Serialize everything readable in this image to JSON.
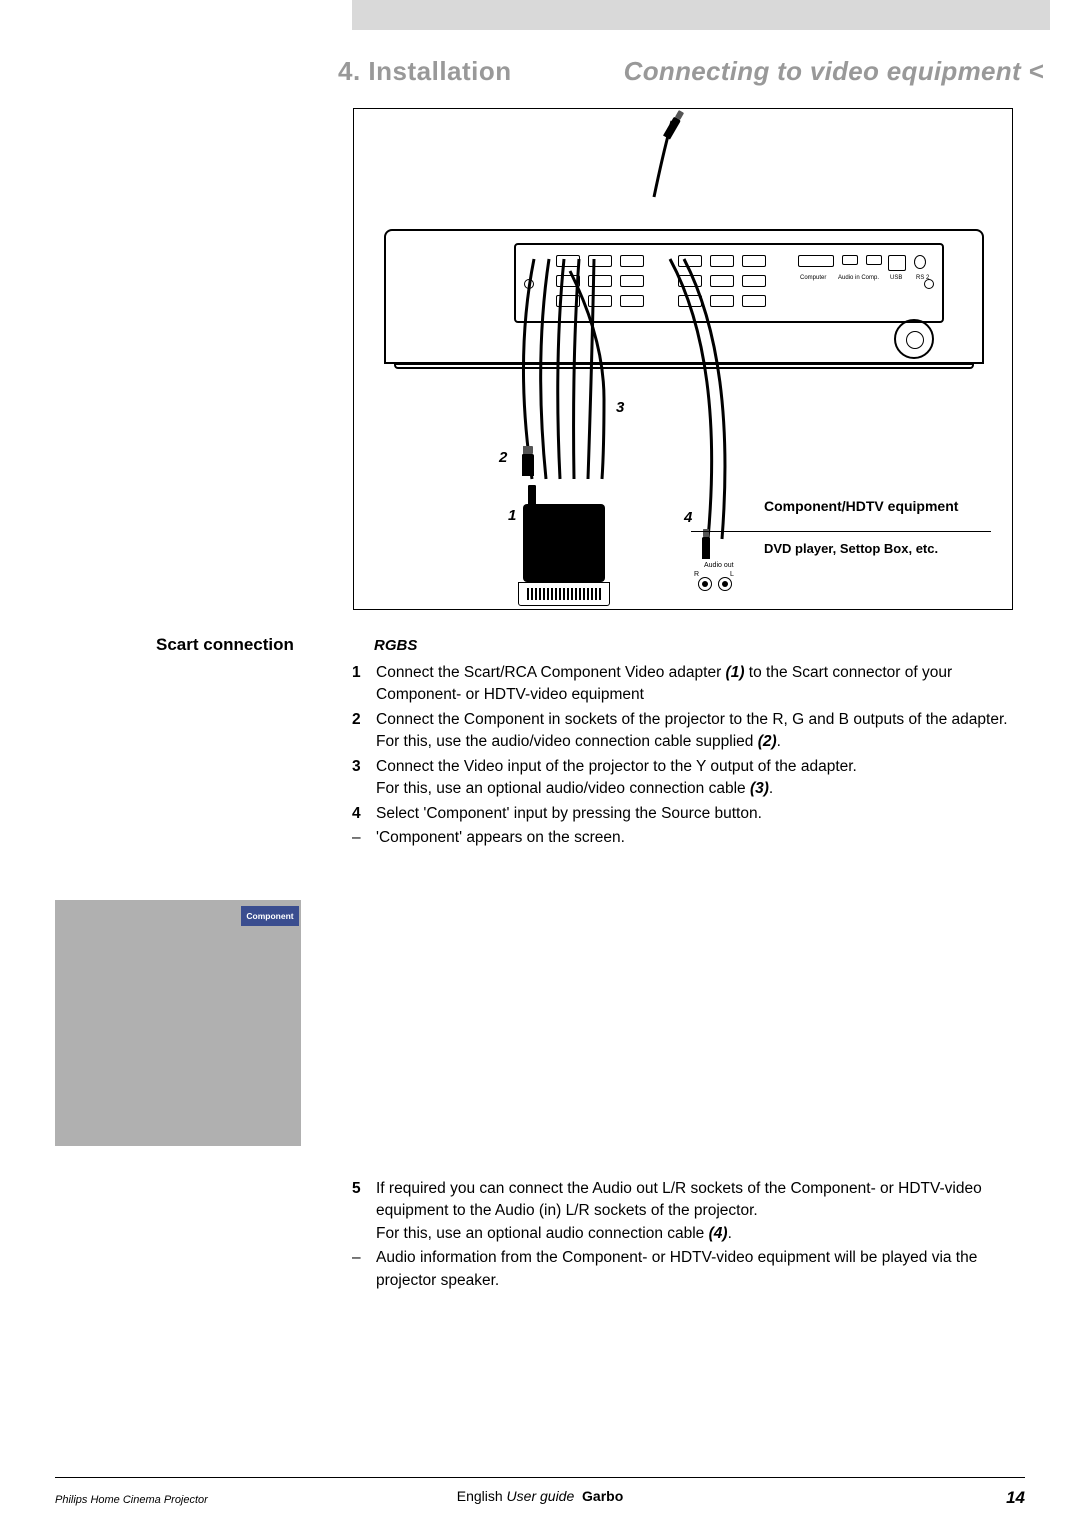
{
  "colors": {
    "grey_bar": "#d9d9d9",
    "header_text": "#999999",
    "grey_box": "#b0b0b0",
    "badge_bg": "#3a4d8f",
    "badge_text": "#ffffff",
    "text": "#000000",
    "page_bg": "#ffffff"
  },
  "header": {
    "chapter": "4. Installation",
    "subtitle": "Connecting to video equipment <"
  },
  "diagram": {
    "labels": {
      "n1": "1",
      "n2": "2",
      "n3": "3",
      "n4": "4"
    },
    "equipment_title": "Component/HDTV equipment",
    "equipment_sub": "DVD player, Settop Box, etc.",
    "audio_out": "Audio out",
    "audio_r": "R",
    "audio_l": "L",
    "port_labels": {
      "computer": "Computer",
      "audio_in": "Audio in Comp.",
      "usb": "USB",
      "rs2": "RS 2"
    }
  },
  "section": {
    "title": "Scart connection",
    "mode": "RGBS"
  },
  "steps1": [
    {
      "n": "1",
      "t": "Connect the Scart/RCA Component Video adapter <span class='ref'>(1)</span> to the Scart connector of your Component- or HDTV-video equipment"
    },
    {
      "n": "2",
      "t": "Connect the Component in sockets of the projector to the R, G and B outputs of the adapter.<br>For this, use the audio/video connection cable supplied <span class='ref'>(2)</span>."
    },
    {
      "n": "3",
      "t": "Connect the Video input of the projector to the Y output of the adapter.<br>For this, use an optional audio/video connection cable <span class='ref'>(3)</span>."
    },
    {
      "n": "4",
      "t": "Select 'Component' input by pressing the Source button."
    },
    {
      "n": "–",
      "dash": true,
      "t": "'Component' appears on the screen."
    }
  ],
  "badge": "Component",
  "steps2": [
    {
      "n": "5",
      "t": "If required you can connect the Audio out L/R sockets of the Component- or HDTV-video equipment to the Audio (in) L/R sockets of the projector.<br>For this, use an optional audio connection cable <span class='ref'>(4)</span>."
    },
    {
      "n": "–",
      "dash": true,
      "t": "Audio information from the Component- or HDTV-video equipment will be played via the projector speaker."
    }
  ],
  "footer": {
    "left": "Philips Home Cinema Projector",
    "center_lang": "English",
    "center_guide": "User guide",
    "center_model": "Garbo",
    "page": "14"
  }
}
